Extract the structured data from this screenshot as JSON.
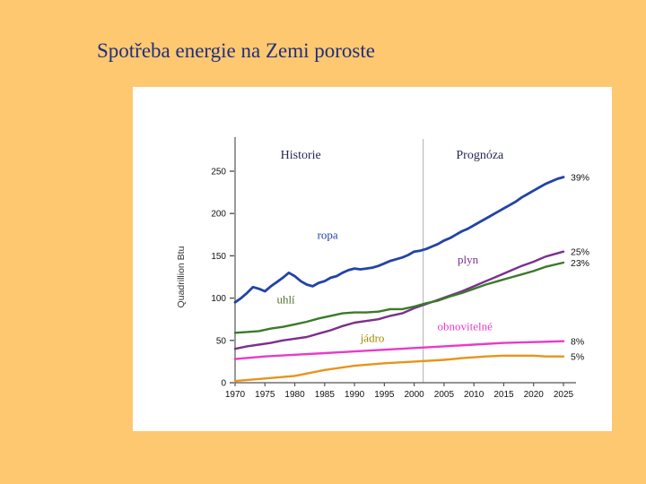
{
  "slide": {
    "title": "Spotřeba energie na Zemi poroste",
    "background_color": "#FEC870",
    "title_color": "#1F2F7D"
  },
  "chart_data": {
    "type": "line",
    "title": "",
    "ylabel": "Quadrillion Btu",
    "xlabel": "",
    "xlim": [
      1970,
      2025
    ],
    "ylim": [
      0,
      265
    ],
    "x_ticks": [
      1970,
      1975,
      1980,
      1985,
      1990,
      1995,
      2000,
      2005,
      2010,
      2015,
      2020,
      2025
    ],
    "y_ticks": [
      0,
      50,
      100,
      150,
      200,
      250
    ],
    "grid": false,
    "legend_position": "inline-labels",
    "divider_year": 2001.5,
    "header_left": {
      "label": "Historie",
      "year": 1981
    },
    "header_right": {
      "label": "Prognóza",
      "year": 2011
    },
    "series": [
      {
        "name": "ropa",
        "label": "ropa",
        "color": "#2243A8",
        "label_color": "#2243A8",
        "width": 2.8,
        "label_pos": {
          "year": 1985.5,
          "value": 170
        },
        "end_label": "39%",
        "points": [
          [
            1970,
            95
          ],
          [
            1971,
            100
          ],
          [
            1972,
            106
          ],
          [
            1973,
            113
          ],
          [
            1974,
            111
          ],
          [
            1975,
            108
          ],
          [
            1976,
            114
          ],
          [
            1977,
            119
          ],
          [
            1978,
            124
          ],
          [
            1979,
            130
          ],
          [
            1980,
            126
          ],
          [
            1981,
            120
          ],
          [
            1982,
            116
          ],
          [
            1983,
            114
          ],
          [
            1984,
            118
          ],
          [
            1985,
            120
          ],
          [
            1986,
            124
          ],
          [
            1987,
            126
          ],
          [
            1988,
            130
          ],
          [
            1989,
            133
          ],
          [
            1990,
            135
          ],
          [
            1991,
            134
          ],
          [
            1992,
            135
          ],
          [
            1993,
            136
          ],
          [
            1994,
            138
          ],
          [
            1995,
            141
          ],
          [
            1996,
            144
          ],
          [
            1997,
            146
          ],
          [
            1998,
            148
          ],
          [
            1999,
            151
          ],
          [
            2000,
            155
          ],
          [
            2001,
            156
          ],
          [
            2002,
            158
          ],
          [
            2003,
            161
          ],
          [
            2004,
            164
          ],
          [
            2005,
            168
          ],
          [
            2006,
            171
          ],
          [
            2007,
            175
          ],
          [
            2008,
            179
          ],
          [
            2009,
            182
          ],
          [
            2010,
            186
          ],
          [
            2011,
            190
          ],
          [
            2012,
            194
          ],
          [
            2013,
            198
          ],
          [
            2014,
            202
          ],
          [
            2015,
            206
          ],
          [
            2016,
            210
          ],
          [
            2017,
            214
          ],
          [
            2018,
            219
          ],
          [
            2019,
            223
          ],
          [
            2020,
            227
          ],
          [
            2021,
            231
          ],
          [
            2022,
            235
          ],
          [
            2023,
            238
          ],
          [
            2024,
            241
          ],
          [
            2025,
            243
          ]
        ]
      },
      {
        "name": "plyn",
        "label": "plyn",
        "color": "#7B2F8E",
        "label_color": "#7B2F8E",
        "width": 2.4,
        "label_pos": {
          "year": 2009,
          "value": 141
        },
        "end_label": "25%",
        "points": [
          [
            1970,
            40
          ],
          [
            1972,
            43
          ],
          [
            1974,
            45
          ],
          [
            1976,
            47
          ],
          [
            1978,
            50
          ],
          [
            1980,
            52
          ],
          [
            1982,
            54
          ],
          [
            1984,
            58
          ],
          [
            1986,
            62
          ],
          [
            1988,
            67
          ],
          [
            1990,
            71
          ],
          [
            1992,
            73
          ],
          [
            1994,
            75
          ],
          [
            1996,
            79
          ],
          [
            1998,
            82
          ],
          [
            2000,
            88
          ],
          [
            2002,
            93
          ],
          [
            2004,
            98
          ],
          [
            2006,
            103
          ],
          [
            2008,
            108
          ],
          [
            2010,
            114
          ],
          [
            2012,
            120
          ],
          [
            2014,
            126
          ],
          [
            2016,
            132
          ],
          [
            2018,
            138
          ],
          [
            2020,
            143
          ],
          [
            2022,
            149
          ],
          [
            2025,
            155
          ]
        ]
      },
      {
        "name": "uhli",
        "label": "uhlí",
        "color": "#3C7A28",
        "label_color": "#55702B",
        "width": 2.4,
        "label_pos": {
          "year": 1978.5,
          "value": 94
        },
        "end_label": "23%",
        "points": [
          [
            1970,
            59
          ],
          [
            1972,
            60
          ],
          [
            1974,
            61
          ],
          [
            1976,
            64
          ],
          [
            1978,
            66
          ],
          [
            1980,
            69
          ],
          [
            1982,
            72
          ],
          [
            1984,
            76
          ],
          [
            1986,
            79
          ],
          [
            1988,
            82
          ],
          [
            1990,
            83
          ],
          [
            1992,
            83
          ],
          [
            1994,
            84
          ],
          [
            1996,
            87
          ],
          [
            1998,
            87
          ],
          [
            2000,
            90
          ],
          [
            2002,
            94
          ],
          [
            2004,
            97
          ],
          [
            2006,
            102
          ],
          [
            2008,
            106
          ],
          [
            2010,
            111
          ],
          [
            2012,
            116
          ],
          [
            2014,
            120
          ],
          [
            2016,
            124
          ],
          [
            2018,
            128
          ],
          [
            2020,
            132
          ],
          [
            2022,
            137
          ],
          [
            2025,
            142
          ]
        ]
      },
      {
        "name": "obnovitelne",
        "label": "obnovitelné",
        "color": "#E93ACB",
        "label_color": "#E93ACB",
        "width": 2.4,
        "label_pos": {
          "year": 2008.5,
          "value": 62
        },
        "end_label": "8%",
        "points": [
          [
            1970,
            28
          ],
          [
            1975,
            31
          ],
          [
            1980,
            33
          ],
          [
            1985,
            35
          ],
          [
            1990,
            37
          ],
          [
            1995,
            39
          ],
          [
            2000,
            41
          ],
          [
            2005,
            43
          ],
          [
            2010,
            45
          ],
          [
            2015,
            47
          ],
          [
            2020,
            48
          ],
          [
            2025,
            49
          ]
        ]
      },
      {
        "name": "jadro",
        "label": "jádro",
        "color": "#E8941A",
        "label_color": "#A08C00",
        "width": 2.4,
        "label_pos": {
          "year": 1993,
          "value": 48
        },
        "end_label": "5%",
        "points": [
          [
            1970,
            2
          ],
          [
            1975,
            5
          ],
          [
            1980,
            8
          ],
          [
            1985,
            15
          ],
          [
            1990,
            20
          ],
          [
            1995,
            23
          ],
          [
            2000,
            25
          ],
          [
            2005,
            27
          ],
          [
            2008,
            29
          ],
          [
            2012,
            31
          ],
          [
            2015,
            32
          ],
          [
            2018,
            32
          ],
          [
            2020,
            32
          ],
          [
            2022,
            31
          ],
          [
            2025,
            31
          ]
        ]
      }
    ]
  }
}
